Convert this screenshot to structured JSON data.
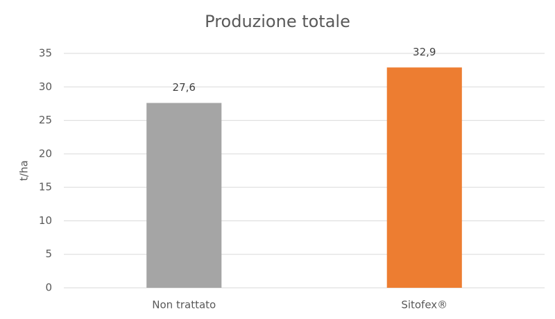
{
  "chart_data": {
    "type": "bar",
    "title": "Produzione totale",
    "y_label": "t/ha",
    "categories": [
      "Non trattato",
      "Sitofex®"
    ],
    "values": [
      27.6,
      32.9
    ],
    "value_labels": [
      "27,6",
      "32,9"
    ],
    "colors": [
      "#a5a5a5",
      "#ed7d31"
    ],
    "ylim": [
      0,
      35
    ],
    "yticks": [
      0,
      5,
      10,
      15,
      20,
      25,
      30,
      35
    ],
    "grid": true
  }
}
